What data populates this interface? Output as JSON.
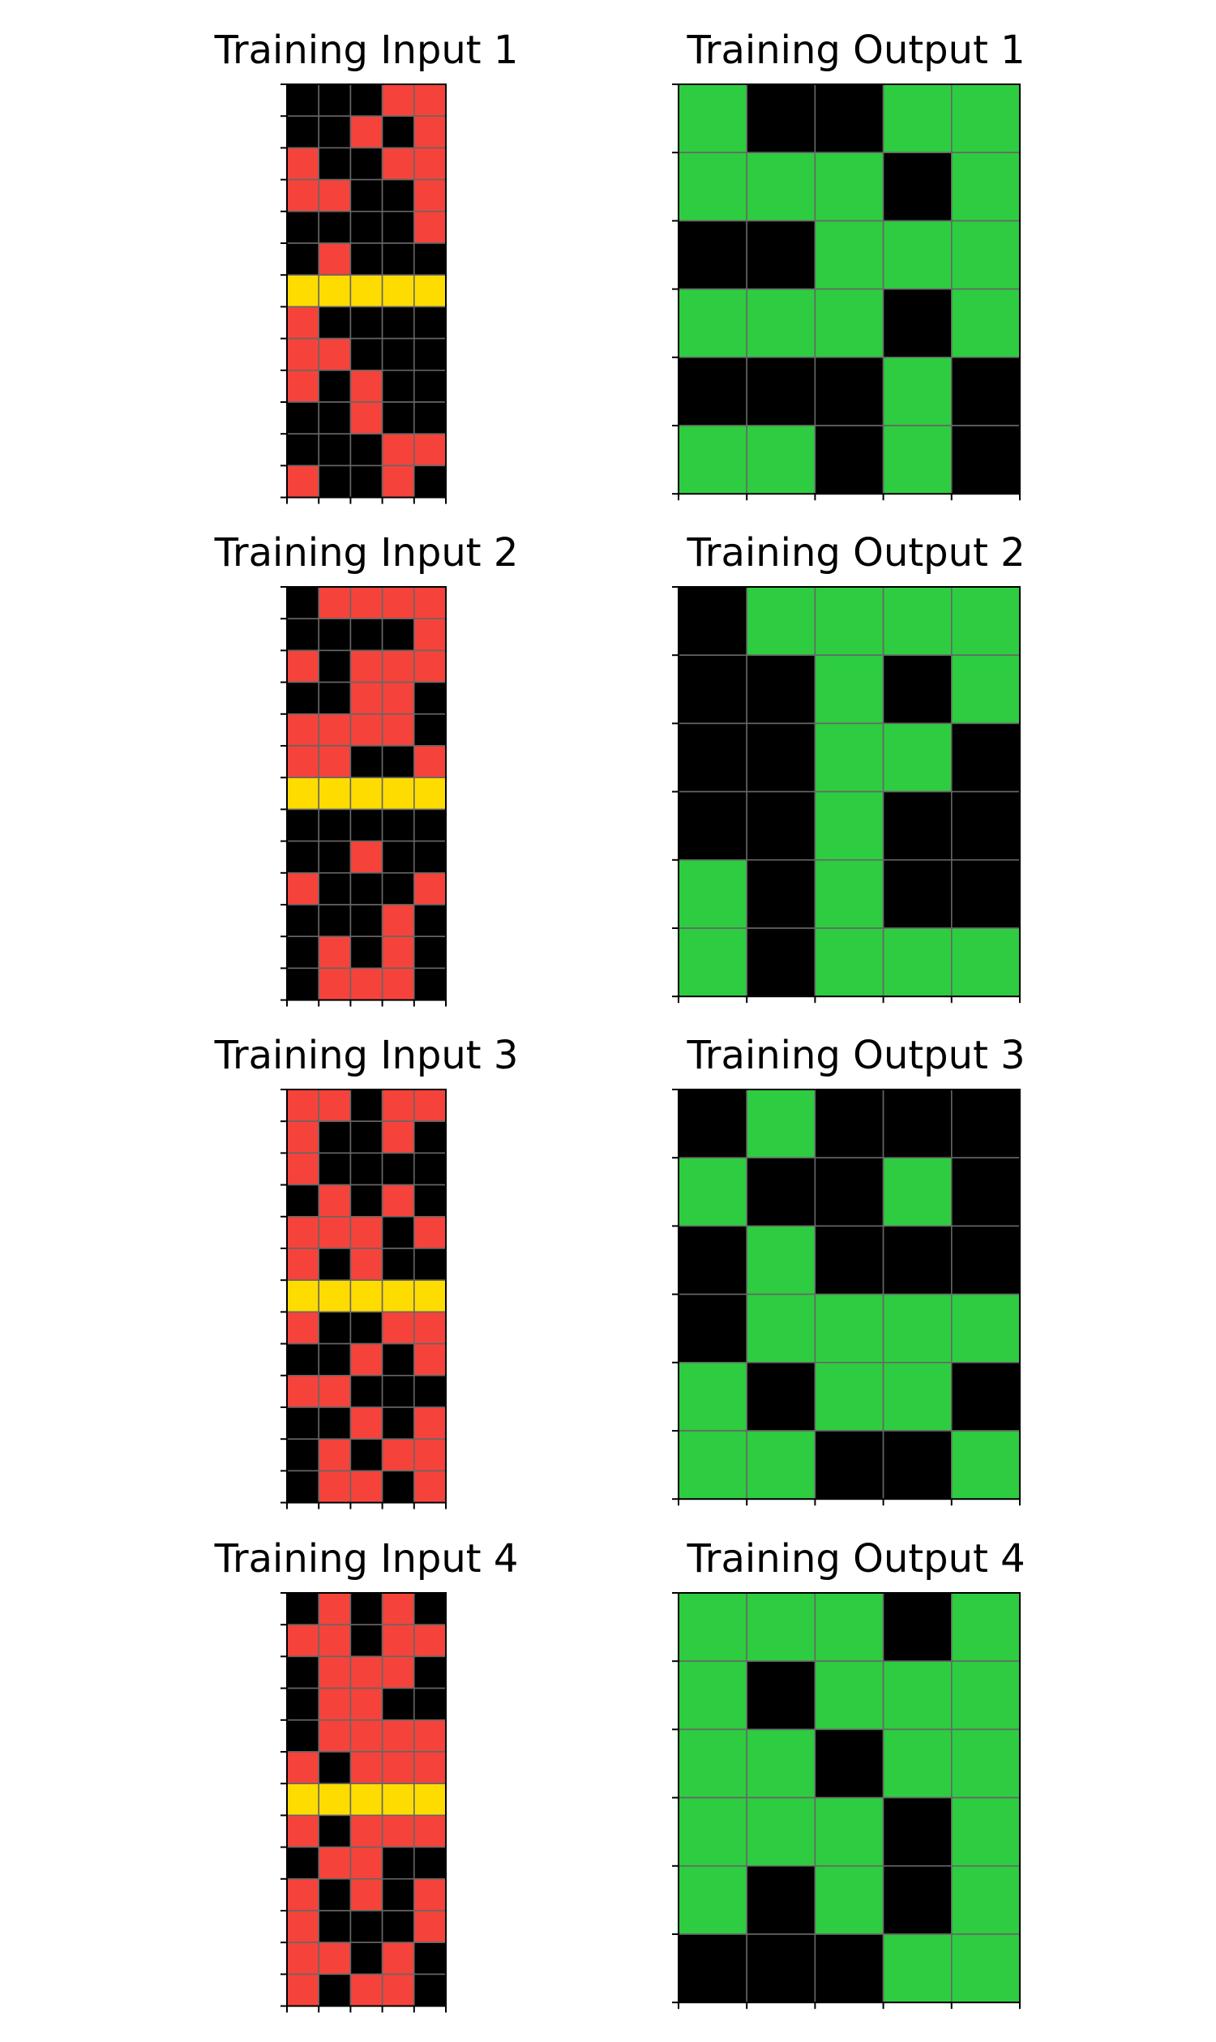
{
  "colors": {
    "0": "#000000",
    "2": "#f5433b",
    "3": "#2ecc40",
    "4": "#ffdc00",
    "gridline": "#666666",
    "frame": "#000000"
  },
  "pairs": [
    {
      "input_title": "Training Input 1",
      "output_title": "Training Output 1",
      "input": [
        [
          0,
          0,
          0,
          2,
          2
        ],
        [
          0,
          0,
          2,
          0,
          2
        ],
        [
          2,
          0,
          0,
          2,
          2
        ],
        [
          2,
          2,
          0,
          0,
          2
        ],
        [
          0,
          0,
          0,
          0,
          2
        ],
        [
          0,
          2,
          0,
          0,
          0
        ],
        [
          4,
          4,
          4,
          4,
          4
        ],
        [
          2,
          0,
          0,
          0,
          0
        ],
        [
          2,
          2,
          0,
          0,
          0
        ],
        [
          2,
          0,
          2,
          0,
          0
        ],
        [
          0,
          0,
          2,
          0,
          0
        ],
        [
          0,
          0,
          0,
          2,
          2
        ],
        [
          2,
          0,
          0,
          2,
          0
        ]
      ],
      "output": [
        [
          3,
          0,
          0,
          3,
          3
        ],
        [
          3,
          3,
          3,
          0,
          3
        ],
        [
          0,
          0,
          3,
          3,
          3
        ],
        [
          3,
          3,
          3,
          0,
          3
        ],
        [
          0,
          0,
          0,
          3,
          0
        ],
        [
          3,
          3,
          0,
          3,
          0
        ]
      ]
    },
    {
      "input_title": "Training Input 2",
      "output_title": "Training Output 2",
      "input": [
        [
          0,
          2,
          2,
          2,
          2
        ],
        [
          0,
          0,
          0,
          0,
          2
        ],
        [
          2,
          0,
          2,
          2,
          2
        ],
        [
          0,
          0,
          2,
          2,
          0
        ],
        [
          2,
          2,
          2,
          2,
          0
        ],
        [
          2,
          2,
          0,
          0,
          2
        ],
        [
          4,
          4,
          4,
          4,
          4
        ],
        [
          0,
          0,
          0,
          0,
          0
        ],
        [
          0,
          0,
          2,
          0,
          0
        ],
        [
          2,
          0,
          0,
          0,
          2
        ],
        [
          0,
          0,
          0,
          2,
          0
        ],
        [
          0,
          2,
          0,
          2,
          0
        ],
        [
          0,
          2,
          2,
          2,
          0
        ]
      ],
      "output": [
        [
          0,
          3,
          3,
          3,
          3
        ],
        [
          0,
          0,
          3,
          0,
          3
        ],
        [
          0,
          0,
          3,
          3,
          0
        ],
        [
          0,
          0,
          3,
          0,
          0
        ],
        [
          3,
          0,
          3,
          0,
          0
        ],
        [
          3,
          0,
          3,
          3,
          3
        ]
      ]
    },
    {
      "input_title": "Training Input 3",
      "output_title": "Training Output 3",
      "input": [
        [
          2,
          2,
          0,
          2,
          2
        ],
        [
          2,
          0,
          0,
          2,
          0
        ],
        [
          2,
          0,
          0,
          0,
          0
        ],
        [
          0,
          2,
          0,
          2,
          0
        ],
        [
          2,
          2,
          2,
          0,
          2
        ],
        [
          2,
          0,
          2,
          0,
          0
        ],
        [
          4,
          4,
          4,
          4,
          4
        ],
        [
          2,
          0,
          0,
          2,
          2
        ],
        [
          0,
          0,
          2,
          0,
          2
        ],
        [
          2,
          2,
          0,
          0,
          0
        ],
        [
          0,
          0,
          2,
          0,
          2
        ],
        [
          0,
          2,
          0,
          2,
          2
        ],
        [
          0,
          2,
          2,
          0,
          2
        ]
      ],
      "output": [
        [
          0,
          3,
          0,
          0,
          0
        ],
        [
          3,
          0,
          0,
          3,
          0
        ],
        [
          0,
          3,
          0,
          0,
          0
        ],
        [
          0,
          3,
          3,
          3,
          3
        ],
        [
          3,
          0,
          3,
          3,
          0
        ],
        [
          3,
          3,
          0,
          0,
          3
        ]
      ]
    },
    {
      "input_title": "Training Input 4",
      "output_title": "Training Output 4",
      "input": [
        [
          0,
          2,
          0,
          2,
          0
        ],
        [
          2,
          2,
          0,
          2,
          2
        ],
        [
          0,
          2,
          2,
          2,
          0
        ],
        [
          0,
          2,
          2,
          0,
          0
        ],
        [
          0,
          2,
          2,
          2,
          2
        ],
        [
          2,
          0,
          2,
          2,
          2
        ],
        [
          4,
          4,
          4,
          4,
          4
        ],
        [
          2,
          0,
          2,
          2,
          2
        ],
        [
          0,
          2,
          2,
          0,
          0
        ],
        [
          2,
          0,
          2,
          0,
          2
        ],
        [
          2,
          0,
          0,
          0,
          2
        ],
        [
          2,
          2,
          0,
          2,
          0
        ],
        [
          2,
          0,
          2,
          2,
          0
        ]
      ],
      "output": [
        [
          3,
          3,
          3,
          0,
          3
        ],
        [
          3,
          0,
          3,
          3,
          3
        ],
        [
          3,
          3,
          0,
          3,
          3
        ],
        [
          3,
          3,
          3,
          0,
          3
        ],
        [
          3,
          0,
          3,
          0,
          3
        ],
        [
          0,
          0,
          0,
          3,
          3
        ]
      ]
    }
  ]
}
